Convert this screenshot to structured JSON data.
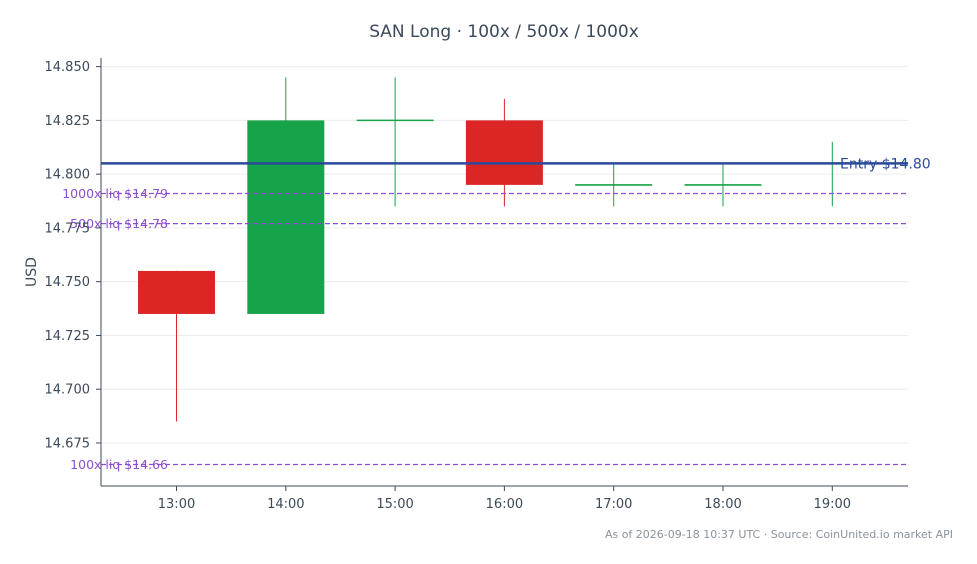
{
  "chart_data": {
    "type": "candlestick",
    "title": "SAN Long · 100x / 500x / 1000x",
    "ylabel": "USD",
    "xlabel": "",
    "ylim": [
      14.655,
      14.854
    ],
    "yticks": [
      14.675,
      14.7,
      14.725,
      14.75,
      14.775,
      14.8,
      14.825,
      14.85
    ],
    "ytick_labels": [
      "14.675",
      "14.700",
      "14.725",
      "14.750",
      "14.775",
      "14.800",
      "14.825",
      "14.850"
    ],
    "categories": [
      "13:00",
      "14:00",
      "15:00",
      "16:00",
      "17:00",
      "18:00",
      "19:00"
    ],
    "candles": [
      {
        "time": "13:00",
        "open": 14.755,
        "high": 14.755,
        "low": 14.685,
        "close": 14.735
      },
      {
        "time": "14:00",
        "open": 14.735,
        "high": 14.845,
        "low": 14.735,
        "close": 14.825
      },
      {
        "time": "15:00",
        "open": 14.825,
        "high": 14.845,
        "low": 14.785,
        "close": 14.825
      },
      {
        "time": "16:00",
        "open": 14.825,
        "high": 14.835,
        "low": 14.785,
        "close": 14.795
      },
      {
        "time": "17:00",
        "open": 14.795,
        "high": 14.805,
        "low": 14.785,
        "close": 14.795
      },
      {
        "time": "18:00",
        "open": 14.795,
        "high": 14.805,
        "low": 14.785,
        "close": 14.795
      },
      {
        "time": "19:00",
        "open": 14.805,
        "high": 14.815,
        "low": 14.785,
        "close": 14.805
      }
    ],
    "entry": {
      "value": 14.805,
      "label": "Entry $14.80",
      "color": "#2a4a9a"
    },
    "liquidation_lines": [
      {
        "value": 14.791,
        "label": "1000x liq $14.79"
      },
      {
        "value": 14.777,
        "label": "500x liq $14.78"
      },
      {
        "value": 14.665,
        "label": "100x liq $14.66"
      }
    ],
    "colors": {
      "up": "#16a34a",
      "down": "#dc2626",
      "liq": "#8e4fd0",
      "axis": "#3b4a5a",
      "grid": "#ececec"
    },
    "grid": true
  },
  "footer": "As of 2026-09-18 10:37 UTC · Source: CoinUnited.io market API"
}
